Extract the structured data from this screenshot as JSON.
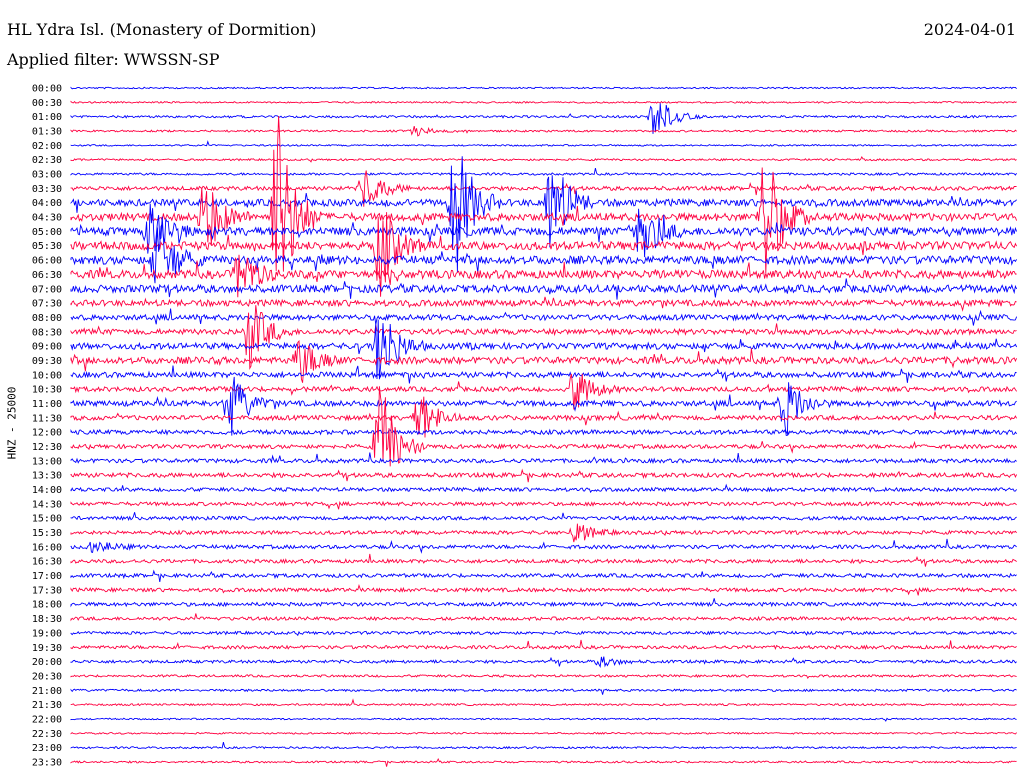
{
  "header": {
    "station": "HL Ydra Isl. (Monastery of Dormition)",
    "date": "2024-04-01",
    "filter_label": "Applied filter:",
    "filter_value": "WWSSN-SP"
  },
  "chart_data": {
    "type": "line",
    "title": "HL Ydra Isl. (Monastery of Dormition)",
    "ylabel": "HNZ - 25000",
    "row_times": [
      "00:00",
      "00:30",
      "01:00",
      "01:30",
      "02:00",
      "02:30",
      "03:00",
      "03:30",
      "04:00",
      "04:30",
      "05:00",
      "05:30",
      "06:00",
      "06:30",
      "07:00",
      "07:30",
      "08:00",
      "08:30",
      "09:00",
      "09:30",
      "10:00",
      "10:30",
      "11:00",
      "11:30",
      "12:00",
      "12:30",
      "13:00",
      "13:30",
      "14:00",
      "14:30",
      "15:00",
      "15:30",
      "16:00",
      "16:30",
      "17:00",
      "17:30",
      "18:00",
      "18:30",
      "19:00",
      "19:30",
      "20:00",
      "20:30",
      "21:00",
      "21:30",
      "22:00",
      "22:30",
      "23:00",
      "23:30"
    ],
    "colors": [
      "#0000ff",
      "#ff0040"
    ],
    "row_activity": [
      0.05,
      0.05,
      0.15,
      0.1,
      0.05,
      0.1,
      0.15,
      0.4,
      0.8,
      0.9,
      1.0,
      1.0,
      1.0,
      1.0,
      0.9,
      0.7,
      0.6,
      0.6,
      0.7,
      0.8,
      0.6,
      0.5,
      0.6,
      0.5,
      0.45,
      0.4,
      0.4,
      0.45,
      0.35,
      0.35,
      0.35,
      0.35,
      0.35,
      0.35,
      0.35,
      0.35,
      0.35,
      0.3,
      0.25,
      0.3,
      0.25,
      0.15,
      0.15,
      0.1,
      0.05,
      0.05,
      0.1,
      0.1
    ],
    "events": [
      {
        "row": 2,
        "x": 655,
        "amp": 24
      },
      {
        "row": 3,
        "x": 415,
        "amp": 5
      },
      {
        "row": 7,
        "x": 365,
        "amp": 25
      },
      {
        "row": 8,
        "x": 455,
        "amp": 80
      },
      {
        "row": 8,
        "x": 550,
        "amp": 60
      },
      {
        "row": 9,
        "x": 205,
        "amp": 45
      },
      {
        "row": 9,
        "x": 277,
        "amp": 120
      },
      {
        "row": 9,
        "x": 765,
        "amp": 80
      },
      {
        "row": 10,
        "x": 150,
        "amp": 30
      },
      {
        "row": 10,
        "x": 640,
        "amp": 40
      },
      {
        "row": 11,
        "x": 380,
        "amp": 50
      },
      {
        "row": 12,
        "x": 158,
        "amp": 45
      },
      {
        "row": 13,
        "x": 240,
        "amp": 30
      },
      {
        "row": 17,
        "x": 250,
        "amp": 40
      },
      {
        "row": 18,
        "x": 380,
        "amp": 50
      },
      {
        "row": 19,
        "x": 300,
        "amp": 25
      },
      {
        "row": 21,
        "x": 575,
        "amp": 25
      },
      {
        "row": 22,
        "x": 230,
        "amp": 35
      },
      {
        "row": 22,
        "x": 785,
        "amp": 35
      },
      {
        "row": 23,
        "x": 420,
        "amp": 30
      },
      {
        "row": 25,
        "x": 380,
        "amp": 70
      },
      {
        "row": 31,
        "x": 575,
        "amp": 12
      },
      {
        "row": 32,
        "x": 95,
        "amp": 8
      },
      {
        "row": 40,
        "x": 602,
        "amp": 5
      }
    ]
  }
}
